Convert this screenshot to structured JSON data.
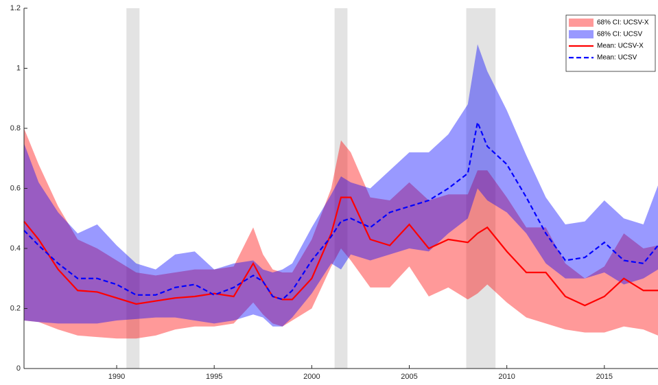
{
  "chart_data": {
    "type": "line",
    "x": [
      1985.25,
      1986,
      1987,
      1988,
      1989,
      1990,
      1991,
      1992,
      1993,
      1994,
      1995,
      1996,
      1997,
      1997.5,
      1998,
      1998.5,
      1999,
      2000,
      2001,
      2001.5,
      2002,
      2003,
      2004,
      2005,
      2006,
      2007,
      2008,
      2008.5,
      2009,
      2010,
      2011,
      2012,
      2013,
      2014,
      2015,
      2016,
      2017,
      2017.75
    ],
    "xlim": [
      1985.25,
      2017.75
    ],
    "xticks": [
      1990,
      1995,
      2000,
      2005,
      2010,
      2015
    ],
    "ylim": [
      0,
      1.2
    ],
    "yticks": [
      0,
      0.2,
      0.4,
      0.6,
      0.8,
      1,
      1.2
    ],
    "legend": "upper right",
    "recessions": {
      "color": "#e3e3e3",
      "spans": [
        [
          1990.5,
          1991.17
        ],
        [
          2001.17,
          2001.83
        ],
        [
          2007.92,
          2009.42
        ]
      ]
    },
    "bands": [
      {
        "name": "68% CI: UCSV-X",
        "color": "#ff0000",
        "opacity": 0.4,
        "lower": [
          0.16,
          0.155,
          0.13,
          0.11,
          0.105,
          0.1,
          0.1,
          0.11,
          0.13,
          0.14,
          0.14,
          0.15,
          0.22,
          0.18,
          0.15,
          0.14,
          0.16,
          0.2,
          0.34,
          0.4,
          0.36,
          0.27,
          0.27,
          0.34,
          0.24,
          0.27,
          0.23,
          0.25,
          0.28,
          0.22,
          0.17,
          0.15,
          0.13,
          0.12,
          0.12,
          0.14,
          0.13,
          0.11
        ],
        "upper": [
          0.8,
          0.68,
          0.54,
          0.43,
          0.4,
          0.36,
          0.32,
          0.31,
          0.32,
          0.33,
          0.33,
          0.34,
          0.47,
          0.38,
          0.33,
          0.32,
          0.32,
          0.43,
          0.6,
          0.76,
          0.72,
          0.57,
          0.56,
          0.62,
          0.56,
          0.58,
          0.58,
          0.66,
          0.66,
          0.57,
          0.47,
          0.47,
          0.35,
          0.3,
          0.34,
          0.45,
          0.4,
          0.41
        ]
      },
      {
        "name": "68% CI: UCSV",
        "color": "#0000ff",
        "opacity": 0.4,
        "lower": [
          0.16,
          0.155,
          0.15,
          0.15,
          0.15,
          0.16,
          0.165,
          0.17,
          0.17,
          0.16,
          0.15,
          0.16,
          0.18,
          0.17,
          0.14,
          0.14,
          0.17,
          0.25,
          0.35,
          0.33,
          0.38,
          0.36,
          0.38,
          0.4,
          0.39,
          0.45,
          0.5,
          0.6,
          0.56,
          0.52,
          0.45,
          0.35,
          0.3,
          0.3,
          0.32,
          0.28,
          0.3,
          0.33
        ],
        "upper": [
          0.75,
          0.62,
          0.52,
          0.45,
          0.48,
          0.41,
          0.35,
          0.33,
          0.38,
          0.39,
          0.33,
          0.35,
          0.36,
          0.33,
          0.32,
          0.33,
          0.35,
          0.47,
          0.58,
          0.64,
          0.62,
          0.6,
          0.66,
          0.72,
          0.72,
          0.78,
          0.88,
          1.08,
          0.99,
          0.86,
          0.71,
          0.57,
          0.48,
          0.49,
          0.56,
          0.5,
          0.48,
          0.61
        ]
      }
    ],
    "series": [
      {
        "name": "Mean: UCSV-X",
        "color": "#ff0000",
        "dashed": false,
        "values": [
          0.49,
          0.43,
          0.33,
          0.26,
          0.255,
          0.235,
          0.215,
          0.225,
          0.235,
          0.24,
          0.25,
          0.24,
          0.35,
          0.29,
          0.24,
          0.23,
          0.23,
          0.3,
          0.45,
          0.57,
          0.57,
          0.43,
          0.41,
          0.48,
          0.4,
          0.43,
          0.42,
          0.45,
          0.47,
          0.39,
          0.32,
          0.32,
          0.24,
          0.21,
          0.24,
          0.3,
          0.26,
          0.26
        ]
      },
      {
        "name": "Mean: UCSV",
        "color": "#0000ff",
        "dashed": true,
        "values": [
          0.46,
          0.41,
          0.35,
          0.3,
          0.3,
          0.28,
          0.245,
          0.245,
          0.27,
          0.28,
          0.245,
          0.27,
          0.31,
          0.29,
          0.24,
          0.23,
          0.26,
          0.36,
          0.44,
          0.49,
          0.5,
          0.47,
          0.52,
          0.54,
          0.56,
          0.6,
          0.65,
          0.82,
          0.74,
          0.68,
          0.57,
          0.45,
          0.36,
          0.37,
          0.42,
          0.36,
          0.35,
          0.41
        ]
      }
    ]
  }
}
